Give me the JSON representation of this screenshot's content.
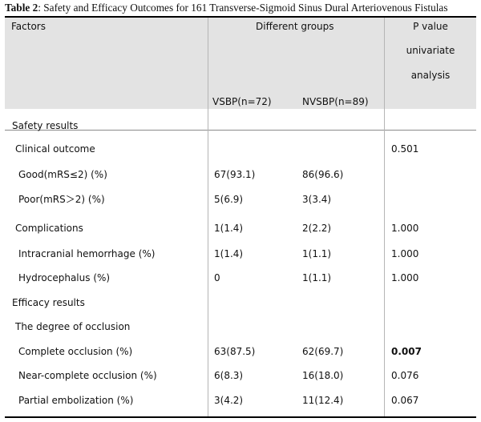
{
  "caption": {
    "label": "Table 2",
    "text": ": Safety and Efficacy Outcomes for 161 Transverse-Sigmoid Sinus Dural Arteriovenous Fistulas"
  },
  "header": {
    "factors": "Factors",
    "groups": "Different groups",
    "pvalue_line1": "P value",
    "pvalue_line2": "univariate",
    "pvalue_line3": "analysis",
    "group1": "VSBP(n=72)",
    "group2": "NVSBP(n=89)"
  },
  "rows": [
    {
      "factor": "Safety results",
      "g1": "",
      "g2": "",
      "p": ""
    },
    {
      "factor": "Clinical outcome",
      "g1": "",
      "g2": "",
      "p": "0.501"
    },
    {
      "factor": "Good(mRS≤2) (%)",
      "g1": "67(93.1)",
      "g2": "86(96.6)",
      "p": ""
    },
    {
      "factor": "Poor(mRS＞2) (%)",
      "g1": "5(6.9)",
      "g2": "3(3.4)",
      "p": ""
    },
    {
      "factor": "Complications",
      "g1": "1(1.4)",
      "g2": "2(2.2)",
      "p": "1.000"
    },
    {
      "factor": "Intracranial hemorrhage (%)",
      "g1": "1(1.4)",
      "g2": "1(1.1)",
      "p": "1.000"
    },
    {
      "factor": "Hydrocephalus (%)",
      "g1": "0",
      "g2": "1(1.1)",
      "p": "1.000"
    },
    {
      "factor": "Efficacy results",
      "g1": "",
      "g2": "",
      "p": ""
    },
    {
      "factor": "The degree of occlusion",
      "g1": "",
      "g2": "",
      "p": ""
    },
    {
      "factor": "Complete occlusion (%)",
      "g1": "63(87.5)",
      "g2": "62(69.7)",
      "p": "0.007"
    },
    {
      "factor": "Near-complete occlusion (%)",
      "g1": "6(8.3)",
      "g2": "16(18.0)",
      "p": "0.076"
    },
    {
      "factor": "Partial embolization (%)",
      "g1": "3(4.2)",
      "g2": "11(12.4)",
      "p": "0.067"
    }
  ]
}
